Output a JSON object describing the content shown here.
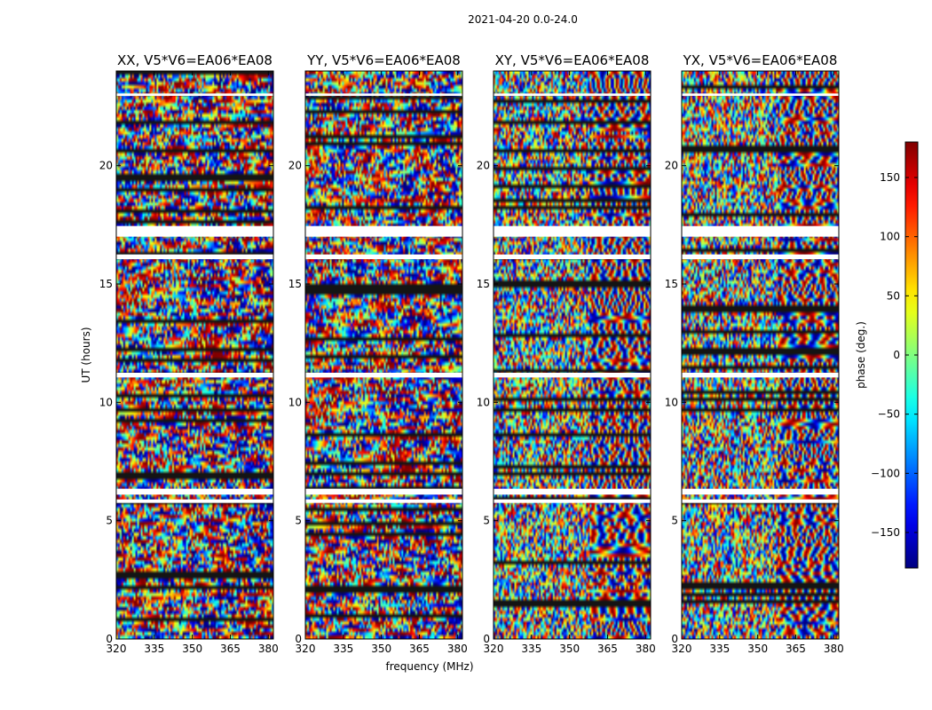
{
  "chart_data": {
    "type": "heatmap",
    "suptitle": "2021-04-20 0.0-24.0",
    "xlabel": "frequency (MHz)",
    "ylabel": "UT (hours)",
    "xlim": [
      320,
      382
    ],
    "ylim": [
      0,
      24
    ],
    "xticks": [
      320,
      335,
      350,
      365,
      380
    ],
    "yticks": [
      0,
      5,
      10,
      15,
      20
    ],
    "colorbar": {
      "label": "phase (deg.)",
      "colormap": "jet",
      "range": [
        -180,
        180
      ],
      "ticks": [
        -150,
        -100,
        -50,
        0,
        50,
        100,
        150
      ],
      "tick_labels": [
        "−150",
        "−100",
        "−50",
        "0",
        "50",
        "100",
        "150"
      ]
    },
    "flagged_gaps_hours": [
      [
        17.0,
        17.45
      ],
      [
        16.05,
        16.25
      ],
      [
        11.05,
        11.25
      ],
      [
        6.1,
        6.35
      ],
      [
        5.75,
        5.9
      ],
      [
        22.95,
        23.05
      ]
    ],
    "panels": [
      {
        "title": "XX, V5*V6=EA06*EA08"
      },
      {
        "title": "YY, V5*V6=EA06*EA08"
      },
      {
        "title": "XY, V5*V6=EA06*EA08"
      },
      {
        "title": "YX, V5*V6=EA06*EA08"
      }
    ]
  }
}
